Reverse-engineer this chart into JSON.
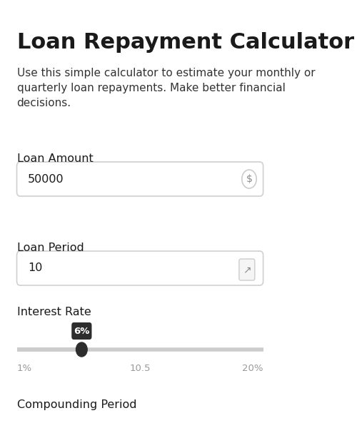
{
  "bg_color": "#ffffff",
  "title": "Loan Repayment Calculator",
  "title_fontsize": 22,
  "title_fontweight": "bold",
  "title_color": "#1a1a1a",
  "subtitle": "Use this simple calculator to estimate your monthly or\nquarterly loan repayments. Make better financial\ndecisions.",
  "subtitle_fontsize": 11,
  "subtitle_color": "#333333",
  "field1_label": "Loan Amount",
  "field1_value": "50000",
  "field1_icon": "$",
  "field2_label": "Loan Period",
  "field2_value": "10",
  "field2_icon": "↗",
  "field3_label": "Interest Rate",
  "slider_label": "6%",
  "slider_min_label": "1%",
  "slider_mid_label": "10.5",
  "slider_max_label": "20%",
  "slider_value": 6,
  "slider_min": 1,
  "slider_max": 20,
  "section4_label": "Compounding Period",
  "label_fontsize": 11.5,
  "label_color": "#1a1a1a",
  "value_fontsize": 11.5,
  "value_color": "#1a1a1a",
  "box_edge_color": "#d0d0d0",
  "box_bg_color": "#ffffff",
  "slider_track_color": "#cccccc",
  "slider_handle_color": "#2d2d2d",
  "slider_tooltip_bg": "#2d2d2d",
  "slider_tooltip_color": "#ffffff",
  "tick_label_color": "#999999",
  "tick_fontsize": 9.5
}
